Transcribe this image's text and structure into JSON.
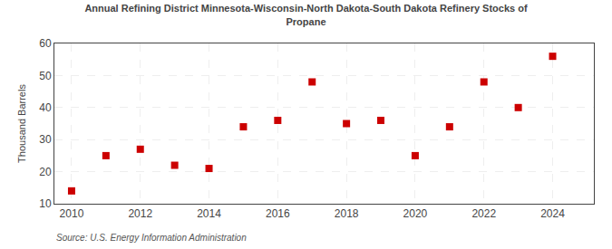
{
  "chart_data": {
    "type": "scatter",
    "title": "Annual Refining District Minnesota-Wisconsin-North Dakota-South Dakota Refinery Stocks of\nPropane",
    "ylabel": "Thousand Barrels",
    "annotations": [
      "Source: U.S. Energy Information Administration"
    ],
    "x": [
      2010,
      2011,
      2012,
      2013,
      2014,
      2015,
      2016,
      2017,
      2018,
      2019,
      2020,
      2021,
      2022,
      2023,
      2024
    ],
    "values": [
      14,
      25,
      27,
      22,
      21,
      34,
      36,
      48,
      35,
      36,
      25,
      34,
      48,
      40,
      56
    ],
    "color": "#cc0000",
    "marker": "square",
    "xlim": [
      2009.5,
      2025.2
    ],
    "xticks": [
      2010,
      2012,
      2014,
      2016,
      2018,
      2020,
      2022,
      2024
    ],
    "ylim": [
      10,
      60
    ],
    "yticks": [
      10,
      20,
      30,
      40,
      50,
      60
    ],
    "grid": true
  }
}
